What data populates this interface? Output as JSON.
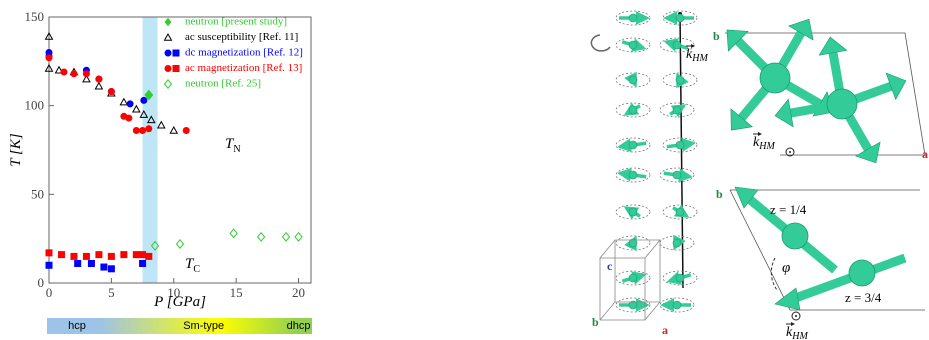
{
  "chart_data": {
    "type": "scatter",
    "xlabel": "P [GPa]",
    "ylabel": "T [K]",
    "xlim": [
      0,
      21
    ],
    "ylim": [
      0,
      150
    ],
    "xticks": [
      0,
      5,
      10,
      15,
      20
    ],
    "yticks": [
      0,
      50,
      100,
      150
    ],
    "highlight_band": [
      7.5,
      8.7
    ],
    "highlight_color": "#bfe6f7",
    "series": [
      {
        "name": "neutron [present study]",
        "color": "#33cc33",
        "groups": [
          {
            "marker": "diamond-filled",
            "x": [
              8
            ],
            "values": [
              106
            ]
          }
        ]
      },
      {
        "name": "ac susceptibility [Ref. 11]",
        "color": "#000000",
        "groups": [
          {
            "marker": "triangle-open",
            "x": [
              0,
              0,
              0.8,
              2,
              3,
              4,
              5,
              6,
              7,
              7.6,
              8.2,
              9,
              10
            ],
            "values": [
              139,
              121,
              120,
              119,
              115,
              111,
              107,
              102,
              98,
              95,
              92,
              89,
              86
            ]
          }
        ]
      },
      {
        "name": "dc magnetization [Ref. 12]",
        "color": "#0000ff",
        "groups": [
          {
            "marker": "circle",
            "x": [
              0,
              0,
              3,
              4,
              5,
              6.5,
              7.6
            ],
            "values": [
              130,
              128,
              120,
              115,
              108,
              101,
              103
            ]
          },
          {
            "marker": "square",
            "x": [
              0,
              2.3,
              3.4,
              4.4,
              5,
              7.5
            ],
            "values": [
              10,
              11,
              11,
              9,
              8,
              11
            ]
          }
        ]
      },
      {
        "name": "ac magnetization [Ref. 13]",
        "color": "#ff0000",
        "groups": [
          {
            "marker": "circle",
            "x": [
              0,
              1.2,
              2,
              3,
              4,
              5,
              6,
              6.4,
              7,
              7.5,
              8,
              11
            ],
            "values": [
              127,
              119,
              118,
              118,
              115,
              108,
              94,
              93,
              86,
              86,
              87,
              86
            ]
          },
          {
            "marker": "square",
            "x": [
              0,
              1,
              2,
              3,
              4,
              5,
              6,
              7,
              7.5,
              8
            ],
            "values": [
              17,
              16,
              15,
              15,
              16,
              15,
              16,
              16,
              16,
              15
            ]
          }
        ]
      },
      {
        "name": "neutron [Ref. 25]",
        "color": "#33cc33",
        "groups": [
          {
            "marker": "diamond-open",
            "x": [
              8.5,
              10.5,
              14.8,
              17,
              19,
              20
            ],
            "values": [
              21,
              22,
              28,
              26,
              26,
              26
            ]
          }
        ]
      }
    ],
    "annotations": [
      {
        "text": "T",
        "sub": "N"
      },
      {
        "text": "T",
        "sub": "C"
      }
    ],
    "phase_bar": {
      "labels": [
        "hcp",
        "Sm-type",
        "dhcp"
      ],
      "colors": [
        "#9dc3e6",
        "#ffff00",
        "#92d050"
      ],
      "boundaries": [
        0,
        8.2,
        19,
        21
      ]
    }
  },
  "diagram": {
    "chain": {
      "k": "k",
      "sub": "HM",
      "c": "c",
      "b": "b",
      "a": "a"
    },
    "top_panel": {
      "b": "b",
      "a": "a",
      "k": "k",
      "sub": "HM"
    },
    "bottom_panel": {
      "b": "b",
      "z1": "z = 1/4",
      "z2": "z = 3/4",
      "phi": "φ",
      "k": "k",
      "sub": "HM"
    }
  }
}
